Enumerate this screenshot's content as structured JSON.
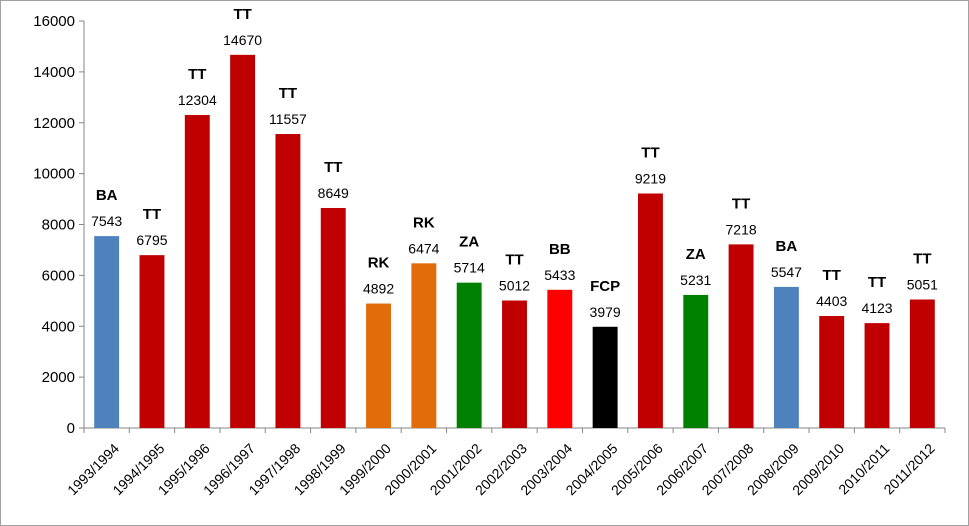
{
  "chart_data": {
    "type": "bar",
    "categories": [
      "1993/1994",
      "1994/1995",
      "1995/1996",
      "1996/1997",
      "1997/1998",
      "1998/1999",
      "1999/2000",
      "2000/2001",
      "2001/2002",
      "2002/2003",
      "2003/2004",
      "2004/2005",
      "2005/2006",
      "2006/2007",
      "2007/2008",
      "2008/2009",
      "2009/2010",
      "2010/2011",
      "2011/2012"
    ],
    "values": [
      7543,
      6795,
      12304,
      14670,
      11557,
      8649,
      4892,
      6474,
      5714,
      5012,
      5433,
      3979,
      9219,
      5231,
      7218,
      5547,
      4403,
      4123,
      5051
    ],
    "annotations": [
      "BA",
      "TT",
      "TT",
      "TT",
      "TT",
      "TT",
      "RK",
      "RK",
      "ZA",
      "TT",
      "BB",
      "FCP",
      "TT",
      "ZA",
      "TT",
      "BA",
      "TT",
      "TT",
      "TT"
    ],
    "bar_colors": [
      "#4f81bd",
      "#c00000",
      "#c00000",
      "#c00000",
      "#c00000",
      "#c00000",
      "#e36c0a",
      "#e36c0a",
      "#008000",
      "#c00000",
      "#ff0000",
      "#000000",
      "#c00000",
      "#008000",
      "#c00000",
      "#4f81bd",
      "#c00000",
      "#c00000",
      "#c00000"
    ],
    "ylim": [
      0,
      16000
    ],
    "yticks": [
      0,
      2000,
      4000,
      6000,
      8000,
      10000,
      12000,
      14000,
      16000
    ],
    "grid": false,
    "legend": "none",
    "title": "",
    "xlabel": "",
    "ylabel": ""
  }
}
